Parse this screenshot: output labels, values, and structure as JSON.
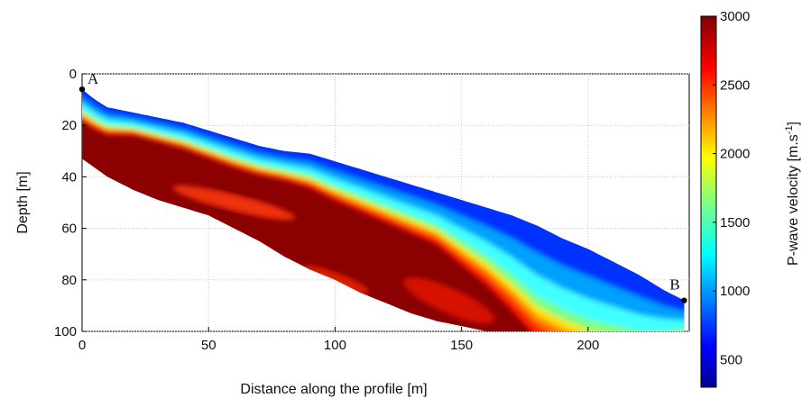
{
  "chart_data": {
    "type": "heatmap",
    "xlabel": "Distance along the profile [m]",
    "ylabel": "Depth [m]",
    "xlim": [
      0,
      240
    ],
    "ylim": [
      0,
      100
    ],
    "y_reversed": true,
    "x_ticks": [
      "0",
      "50",
      "100",
      "150",
      "200"
    ],
    "y_ticks": [
      "0",
      "20",
      "40",
      "60",
      "80",
      "100"
    ],
    "grid": true,
    "colorbar": {
      "label_main": "P-wave velocity [m.s",
      "label_sup": "-1",
      "label_end": "]",
      "min": 300,
      "max": 3000,
      "ticks": [
        "500",
        "1000",
        "1500",
        "2000",
        "2500",
        "3000"
      ],
      "colormap": "jet"
    },
    "points": [
      {
        "label": "A",
        "x": 0,
        "y": 6
      },
      {
        "label": "B",
        "x": 238,
        "y": 88
      }
    ],
    "surface": {
      "x": [
        0,
        5,
        10,
        20,
        30,
        40,
        50,
        60,
        70,
        80,
        90,
        100,
        110,
        120,
        130,
        140,
        150,
        160,
        170,
        180,
        190,
        200,
        210,
        220,
        230,
        238
      ],
      "y": [
        6,
        10,
        13,
        15,
        17,
        19,
        22,
        25,
        28,
        30,
        31,
        34,
        37,
        40,
        43,
        46,
        49,
        52,
        55,
        59,
        64,
        68,
        73,
        78,
        84,
        88
      ]
    },
    "bottom": {
      "x": [
        0,
        10,
        20,
        30,
        40,
        50,
        60,
        70,
        80,
        90,
        100,
        110,
        120,
        130,
        140,
        150,
        160,
        165,
        240
      ],
      "y": [
        33,
        40,
        45,
        49,
        52,
        55,
        60,
        65,
        71,
        76,
        80,
        85,
        89,
        93,
        96,
        98,
        100,
        100,
        100
      ]
    },
    "low_velocity_thickness": {
      "x": [
        0,
        20,
        40,
        60,
        80,
        100,
        120,
        140,
        160,
        180,
        200,
        220,
        238
      ],
      "thickness": [
        10,
        7,
        8,
        9,
        9,
        12,
        14,
        16,
        24,
        35,
        35,
        28,
        14
      ]
    }
  }
}
